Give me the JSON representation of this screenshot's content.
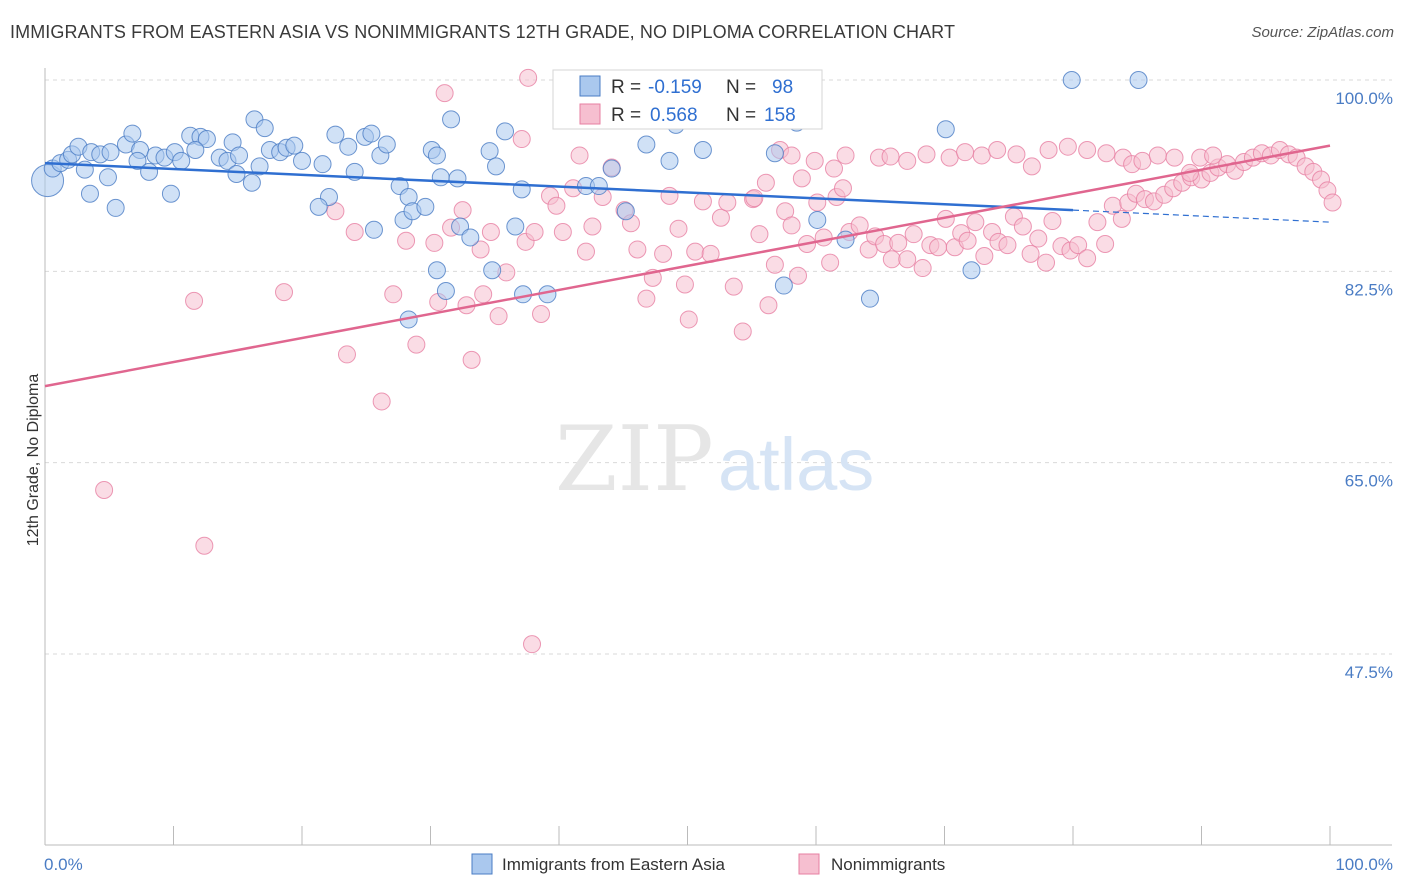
{
  "header": {
    "title": "IMMIGRANTS FROM EASTERN ASIA VS NONIMMIGRANTS 12TH GRADE, NO DIPLOMA CORRELATION CHART",
    "source": "Source: ZipAtlas.com"
  },
  "watermark": {
    "zip": "ZIP",
    "atlas": "atlas"
  },
  "colors": {
    "blue": "#4a7cc4",
    "blue_fill": "#aac8ee",
    "blue_line": "#2f6fd1",
    "pink": "#e77fa2",
    "pink_fill": "#f6bfd0",
    "pink_line": "#e0668f",
    "grid": "#d9d9d9"
  },
  "stats": {
    "blue": {
      "r_label": "R =",
      "r_value": "-0.159",
      "n_label": "N =",
      "n_value": "98"
    },
    "pink": {
      "r_label": "R =",
      "r_value": "0.568",
      "n_label": "N =",
      "n_value": "158"
    }
  },
  "chart_data": {
    "type": "scatter",
    "title": "IMMIGRANTS FROM EASTERN ASIA VS NONIMMIGRANTS 12TH GRADE, NO DIPLOMA CORRELATION CHART",
    "xlabel": "",
    "ylabel": "12th Grade, No Diploma",
    "xlim": [
      0,
      100
    ],
    "ylim": [
      32,
      102
    ],
    "x_tick_labels": [
      "0.0%",
      "100.0%"
    ],
    "y_ticks": [
      47.5,
      65.0,
      82.5,
      100.0
    ],
    "y_tick_labels": [
      "47.5%",
      "65.0%",
      "82.5%",
      "100.0%"
    ],
    "grid": true,
    "legend_position": "bottom",
    "series": [
      {
        "name": "Immigrants from Eastern Asia",
        "color": "#4a7cc4",
        "trend": {
          "x0": 0,
          "y0": 92.4,
          "x1": 80,
          "y1": 88.1,
          "dash_to_x": 100,
          "dash_to_y": 87.0
        },
        "points": [
          [
            0.2,
            90.8
          ],
          [
            0.6,
            91.9
          ],
          [
            1.2,
            92.4
          ],
          [
            1.8,
            92.7
          ],
          [
            2.1,
            93.2
          ],
          [
            2.6,
            93.9
          ],
          [
            3.1,
            91.8
          ],
          [
            3.6,
            93.4
          ],
          [
            4.3,
            93.2
          ],
          [
            5.1,
            93.4
          ],
          [
            3.5,
            89.6
          ],
          [
            4.9,
            91.1
          ],
          [
            5.5,
            88.3
          ],
          [
            6.3,
            94.1
          ],
          [
            7.4,
            93.6
          ],
          [
            6.8,
            95.1
          ],
          [
            7.2,
            92.6
          ],
          [
            8.1,
            91.6
          ],
          [
            8.6,
            93.1
          ],
          [
            9.3,
            92.9
          ],
          [
            9.8,
            89.6
          ],
          [
            10.1,
            93.4
          ],
          [
            10.6,
            92.6
          ],
          [
            11.3,
            94.9
          ],
          [
            12.1,
            94.8
          ],
          [
            12.6,
            94.6
          ],
          [
            11.7,
            93.6
          ],
          [
            13.6,
            92.9
          ],
          [
            14.2,
            92.6
          ],
          [
            14.6,
            94.3
          ],
          [
            15.1,
            93.1
          ],
          [
            14.9,
            91.4
          ],
          [
            16.1,
            90.6
          ],
          [
            16.7,
            92.1
          ],
          [
            16.3,
            96.4
          ],
          [
            17.1,
            95.6
          ],
          [
            17.5,
            93.6
          ],
          [
            18.3,
            93.4
          ],
          [
            18.8,
            93.8
          ],
          [
            19.4,
            94.0
          ],
          [
            20.0,
            92.6
          ],
          [
            21.6,
            92.3
          ],
          [
            22.1,
            89.3
          ],
          [
            21.3,
            88.4
          ],
          [
            22.6,
            95.0
          ],
          [
            23.6,
            93.9
          ],
          [
            24.1,
            91.6
          ],
          [
            24.9,
            94.8
          ],
          [
            25.4,
            95.1
          ],
          [
            26.1,
            93.1
          ],
          [
            26.6,
            94.1
          ],
          [
            25.6,
            86.3
          ],
          [
            27.6,
            90.3
          ],
          [
            28.3,
            89.3
          ],
          [
            27.9,
            87.2
          ],
          [
            28.6,
            88.0
          ],
          [
            29.6,
            88.4
          ],
          [
            30.1,
            93.6
          ],
          [
            30.8,
            91.1
          ],
          [
            30.5,
            93.1
          ],
          [
            31.6,
            96.4
          ],
          [
            32.3,
            86.6
          ],
          [
            32.1,
            91.0
          ],
          [
            33.1,
            85.6
          ],
          [
            34.6,
            93.5
          ],
          [
            35.1,
            92.1
          ],
          [
            35.8,
            95.3
          ],
          [
            37.1,
            90.0
          ],
          [
            36.6,
            86.6
          ],
          [
            34.8,
            82.6
          ],
          [
            30.5,
            82.6
          ],
          [
            28.3,
            78.1
          ],
          [
            31.2,
            80.7
          ],
          [
            37.2,
            80.4
          ],
          [
            39.1,
            80.4
          ],
          [
            40.5,
            100.0
          ],
          [
            41.2,
            97.1
          ],
          [
            42.1,
            90.3
          ],
          [
            43.1,
            90.3
          ],
          [
            44.1,
            91.9
          ],
          [
            45.2,
            88.0
          ],
          [
            46.8,
            94.1
          ],
          [
            48.6,
            92.6
          ],
          [
            49.1,
            95.9
          ],
          [
            50.5,
            98.1
          ],
          [
            51.2,
            93.6
          ],
          [
            51.8,
            97.1
          ],
          [
            55.3,
            97.6
          ],
          [
            56.8,
            93.3
          ],
          [
            58.5,
            96.1
          ],
          [
            60.1,
            87.2
          ],
          [
            62.3,
            85.4
          ],
          [
            64.2,
            80.0
          ],
          [
            70.1,
            95.5
          ],
          [
            79.9,
            100.0
          ],
          [
            85.1,
            100.0
          ],
          [
            72.1,
            82.6
          ],
          [
            57.5,
            81.2
          ]
        ]
      },
      {
        "name": "Nonimmigrants",
        "color": "#e77fa2",
        "trend": {
          "x0": 0,
          "y0": 72.0,
          "x1": 100,
          "y1": 94.0
        },
        "points": [
          [
            4.6,
            62.5
          ],
          [
            11.6,
            79.8
          ],
          [
            12.4,
            57.4
          ],
          [
            18.6,
            80.6
          ],
          [
            22.6,
            88.0
          ],
          [
            23.5,
            74.9
          ],
          [
            24.1,
            86.1
          ],
          [
            26.2,
            70.6
          ],
          [
            27.1,
            80.4
          ],
          [
            28.1,
            85.3
          ],
          [
            28.9,
            75.8
          ],
          [
            30.3,
            85.1
          ],
          [
            30.6,
            79.7
          ],
          [
            31.1,
            98.8
          ],
          [
            31.6,
            86.5
          ],
          [
            32.5,
            88.1
          ],
          [
            32.8,
            79.4
          ],
          [
            33.2,
            74.4
          ],
          [
            33.9,
            84.5
          ],
          [
            34.1,
            80.4
          ],
          [
            34.7,
            86.1
          ],
          [
            35.3,
            78.4
          ],
          [
            35.9,
            82.4
          ],
          [
            37.4,
            85.2
          ],
          [
            37.9,
            48.4
          ],
          [
            37.1,
            94.6
          ],
          [
            37.6,
            100.2
          ],
          [
            38.1,
            86.1
          ],
          [
            38.6,
            78.6
          ],
          [
            39.3,
            89.4
          ],
          [
            39.8,
            88.5
          ],
          [
            40.3,
            86.1
          ],
          [
            41.1,
            90.1
          ],
          [
            41.6,
            93.1
          ],
          [
            42.1,
            84.3
          ],
          [
            42.6,
            86.6
          ],
          [
            43.4,
            89.3
          ],
          [
            44.1,
            92.0
          ],
          [
            45.1,
            88.1
          ],
          [
            45.6,
            86.9
          ],
          [
            46.1,
            84.5
          ],
          [
            46.8,
            80.0
          ],
          [
            47.3,
            81.9
          ],
          [
            48.1,
            84.1
          ],
          [
            48.6,
            89.4
          ],
          [
            49.3,
            86.4
          ],
          [
            49.8,
            81.3
          ],
          [
            50.1,
            78.1
          ],
          [
            50.6,
            84.3
          ],
          [
            51.2,
            88.9
          ],
          [
            51.8,
            84.1
          ],
          [
            52.6,
            87.4
          ],
          [
            53.1,
            88.8
          ],
          [
            53.6,
            81.1
          ],
          [
            54.3,
            77.0
          ],
          [
            55.1,
            89.1
          ],
          [
            55.6,
            85.9
          ],
          [
            56.3,
            79.4
          ],
          [
            56.8,
            83.1
          ],
          [
            57.6,
            88.0
          ],
          [
            58.1,
            86.7
          ],
          [
            58.6,
            82.1
          ],
          [
            59.3,
            85.0
          ],
          [
            60.1,
            88.8
          ],
          [
            60.6,
            85.6
          ],
          [
            61.1,
            83.3
          ],
          [
            61.6,
            89.3
          ],
          [
            62.1,
            90.1
          ],
          [
            62.6,
            86.1
          ],
          [
            63.4,
            86.7
          ],
          [
            64.1,
            84.5
          ],
          [
            64.6,
            85.7
          ],
          [
            65.3,
            85.0
          ],
          [
            65.9,
            83.6
          ],
          [
            66.4,
            85.1
          ],
          [
            67.1,
            83.6
          ],
          [
            67.6,
            85.9
          ],
          [
            68.3,
            82.8
          ],
          [
            68.9,
            84.9
          ],
          [
            69.5,
            84.7
          ],
          [
            70.1,
            87.3
          ],
          [
            70.8,
            84.7
          ],
          [
            71.3,
            86.0
          ],
          [
            71.8,
            85.3
          ],
          [
            72.4,
            87.0
          ],
          [
            73.1,
            83.9
          ],
          [
            73.7,
            86.1
          ],
          [
            74.2,
            85.2
          ],
          [
            74.9,
            84.9
          ],
          [
            75.4,
            87.5
          ],
          [
            76.1,
            86.6
          ],
          [
            76.7,
            84.1
          ],
          [
            77.3,
            85.5
          ],
          [
            77.9,
            83.3
          ],
          [
            78.4,
            87.1
          ],
          [
            79.1,
            84.8
          ],
          [
            79.8,
            84.4
          ],
          [
            80.4,
            84.9
          ],
          [
            81.1,
            83.7
          ],
          [
            81.9,
            87.0
          ],
          [
            82.5,
            85.0
          ],
          [
            83.1,
            88.5
          ],
          [
            83.8,
            87.3
          ],
          [
            84.3,
            88.8
          ],
          [
            84.9,
            89.6
          ],
          [
            85.6,
            89.1
          ],
          [
            86.3,
            88.9
          ],
          [
            87.1,
            89.5
          ],
          [
            87.8,
            90.1
          ],
          [
            88.5,
            90.6
          ],
          [
            89.2,
            91.1
          ],
          [
            90.0,
            90.9
          ],
          [
            90.7,
            91.5
          ],
          [
            91.3,
            92.0
          ],
          [
            92.0,
            92.3
          ],
          [
            92.6,
            91.7
          ],
          [
            93.3,
            92.5
          ],
          [
            94.0,
            92.9
          ],
          [
            94.7,
            93.3
          ],
          [
            95.4,
            93.1
          ],
          [
            96.1,
            93.6
          ],
          [
            96.8,
            93.2
          ],
          [
            97.4,
            92.9
          ],
          [
            98.1,
            92.1
          ],
          [
            98.7,
            91.6
          ],
          [
            99.3,
            90.9
          ],
          [
            99.8,
            89.9
          ],
          [
            100.2,
            88.8
          ],
          [
            56.1,
            90.6
          ],
          [
            55.2,
            89.2
          ],
          [
            57.2,
            93.6
          ],
          [
            58.1,
            93.1
          ],
          [
            59.9,
            92.6
          ],
          [
            58.9,
            91.0
          ],
          [
            62.3,
            93.1
          ],
          [
            61.4,
            91.9
          ],
          [
            64.9,
            92.9
          ],
          [
            65.8,
            93.0
          ],
          [
            67.1,
            92.6
          ],
          [
            68.6,
            93.2
          ],
          [
            70.4,
            92.9
          ],
          [
            71.6,
            93.4
          ],
          [
            72.9,
            93.1
          ],
          [
            74.1,
            93.6
          ],
          [
            75.6,
            93.2
          ],
          [
            76.8,
            92.1
          ],
          [
            78.1,
            93.6
          ],
          [
            79.6,
            93.9
          ],
          [
            81.1,
            93.6
          ],
          [
            82.6,
            93.3
          ],
          [
            83.9,
            92.9
          ],
          [
            84.6,
            92.3
          ],
          [
            85.4,
            92.6
          ],
          [
            86.6,
            93.1
          ],
          [
            87.9,
            92.9
          ],
          [
            89.1,
            91.5
          ],
          [
            89.9,
            92.9
          ],
          [
            90.9,
            93.1
          ]
        ]
      }
    ]
  },
  "legend": {
    "blue_label": "Immigrants from Eastern Asia",
    "pink_label": "Nonimmigrants"
  }
}
